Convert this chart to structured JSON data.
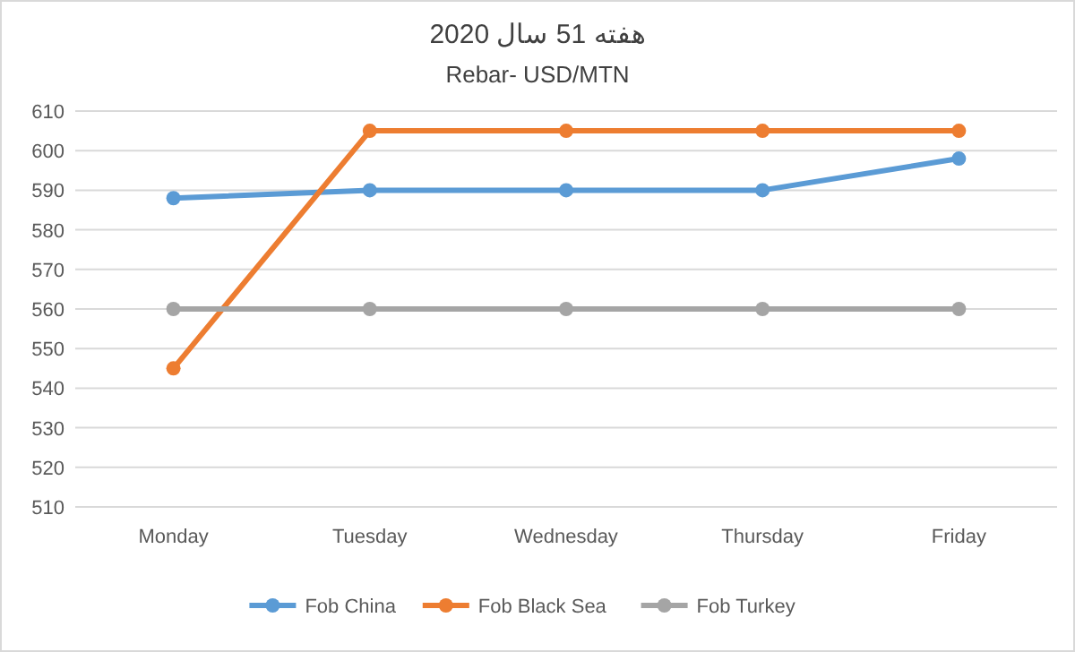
{
  "chart_data": {
    "type": "line",
    "title": "هفته 51 سال 2020",
    "subtitle": "Rebar- USD/MTN",
    "categories": [
      "Monday",
      "Tuesday",
      "Wednesday",
      "Thursday",
      "Friday"
    ],
    "series": [
      {
        "name": "Fob China",
        "color": "#5b9bd5",
        "values": [
          588,
          590,
          590,
          590,
          598
        ]
      },
      {
        "name": "Fob Black Sea",
        "color": "#ed7d31",
        "values": [
          545,
          605,
          605,
          605,
          605
        ]
      },
      {
        "name": "Fob Turkey",
        "color": "#a5a5a5",
        "values": [
          560,
          560,
          560,
          560,
          560
        ]
      }
    ],
    "ylim": [
      510,
      610
    ],
    "yticks": [
      510,
      520,
      530,
      540,
      550,
      560,
      570,
      580,
      590,
      600,
      610
    ],
    "grid": "y",
    "legend": "bottom",
    "marker": "circle",
    "line_style": "solid"
  }
}
